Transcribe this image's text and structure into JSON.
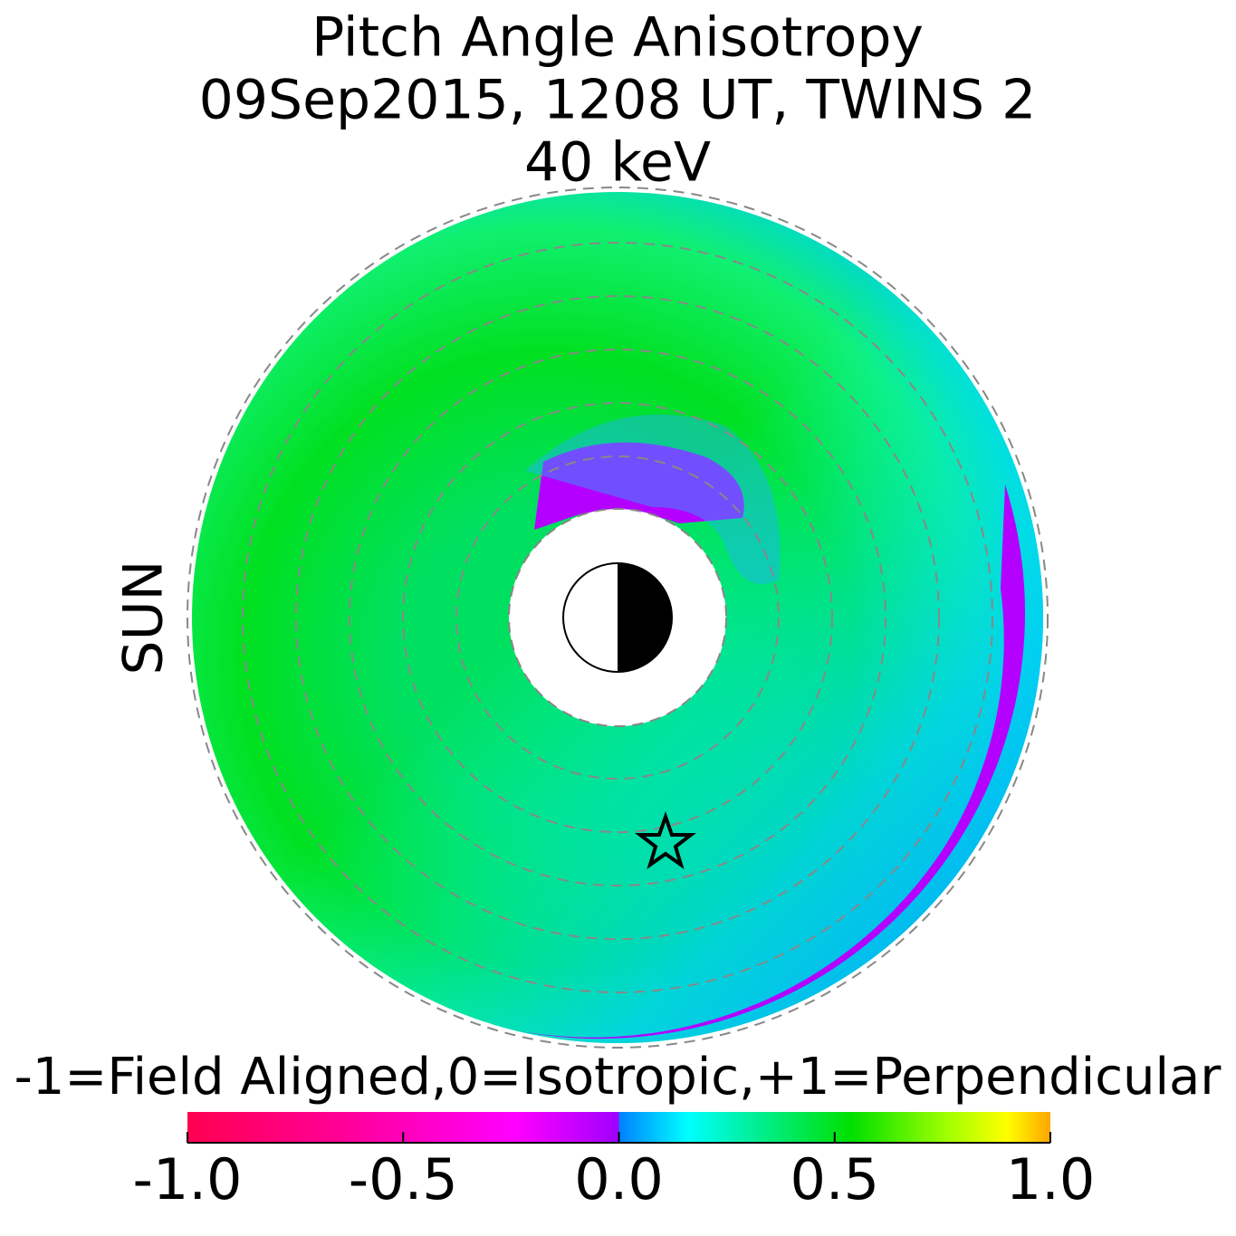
{
  "chart_data": {
    "type": "polar_map",
    "title": [
      "Pitch Angle Anisotropy",
      "09Sep2015, 1208 UT,  TWINS 2",
      "40 keV"
    ],
    "side_label": "SUN",
    "side_label_color": "#f5a000",
    "colorbar": {
      "label": "-1=Field Aligned,0=Isotropic,+1=Perpendicular",
      "lim": [
        -1,
        1
      ],
      "ticks": [
        {
          "value": -1,
          "label": "-1.0"
        },
        {
          "value": -0.5,
          "label": "-0.5"
        },
        {
          "value": 0,
          "label": "0.0"
        },
        {
          "value": 0.5,
          "label": "0.5"
        },
        {
          "value": 1,
          "label": "1.0"
        }
      ]
    }
  }
}
